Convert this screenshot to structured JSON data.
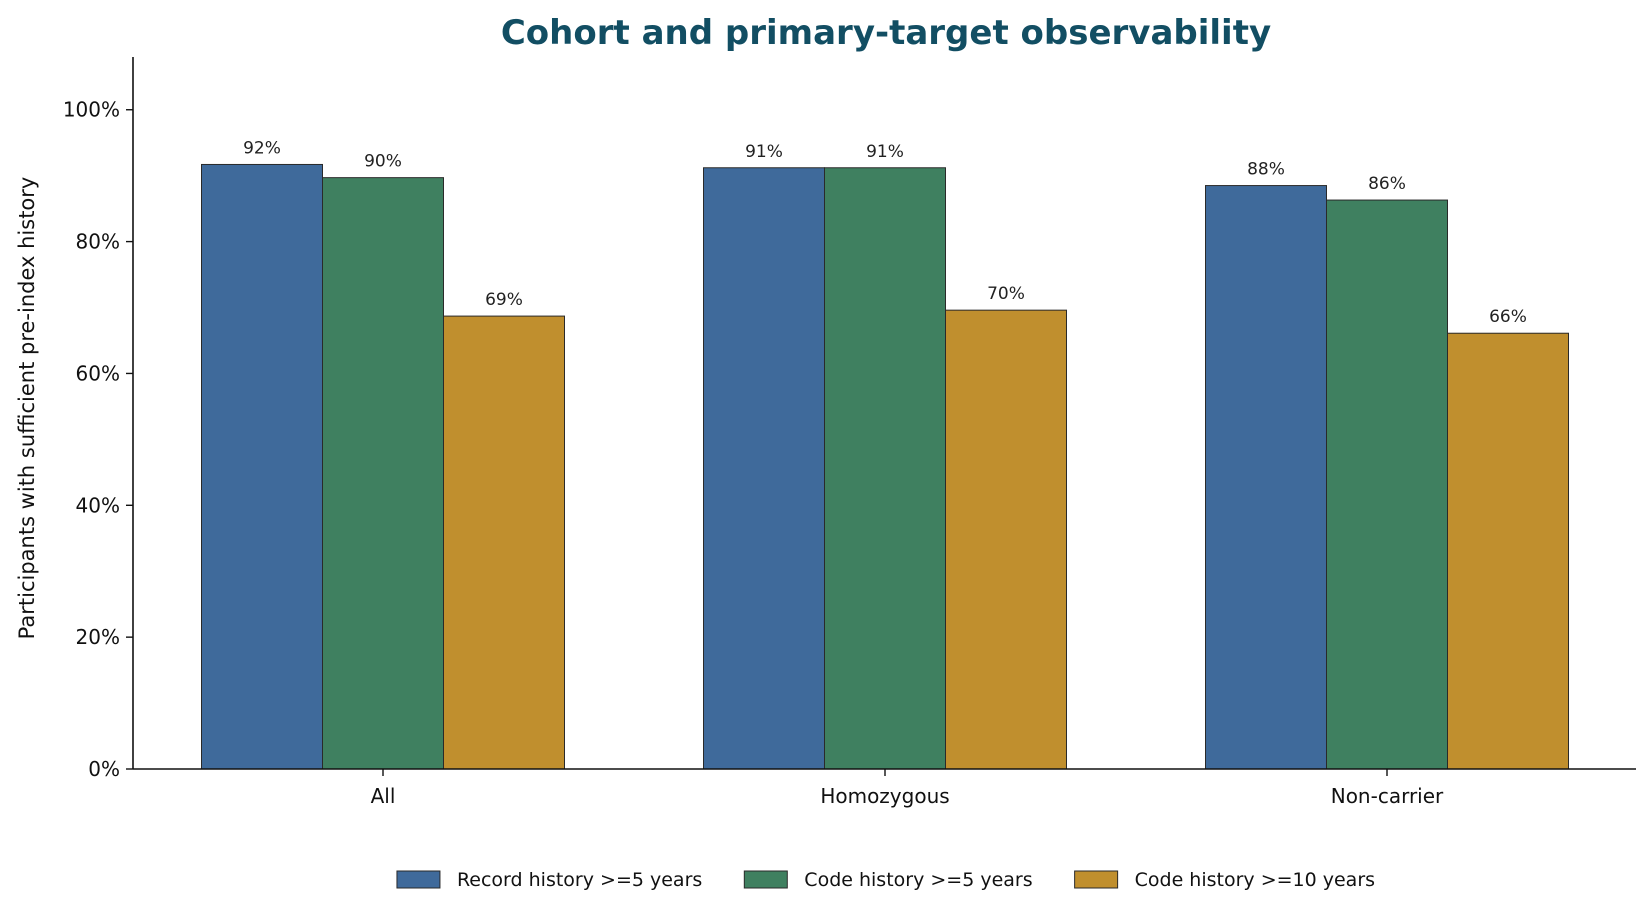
{
  "chart_data": {
    "type": "bar",
    "title": "Cohort and primary-target observability",
    "xlabel": "",
    "ylabel": "Participants with sufficient pre-index history",
    "categories": [
      "All",
      "Homozygous",
      "Non-carrier"
    ],
    "series": [
      {
        "name": "Record history >=5 years",
        "color": "#3f6a9b",
        "values": [
          0.917,
          0.912,
          0.885
        ],
        "labels": [
          "92%",
          "91%",
          "88%"
        ]
      },
      {
        "name": "Code history >=5 years",
        "color": "#3f8060",
        "values": [
          0.897,
          0.912,
          0.863
        ],
        "labels": [
          "90%",
          "91%",
          "86%"
        ]
      },
      {
        "name": "Code history >=10 years",
        "color": "#c08f2e",
        "values": [
          0.687,
          0.696,
          0.661
        ],
        "labels": [
          "69%",
          "70%",
          "66%"
        ]
      }
    ],
    "ylim": [
      0,
      1.08
    ],
    "yticks": [
      0,
      0.2,
      0.4,
      0.6,
      0.8,
      1.0
    ],
    "ytick_labels": [
      "0%",
      "20%",
      "40%",
      "60%",
      "80%",
      "100%"
    ],
    "grid": false,
    "legend_position": "bottom-center"
  }
}
